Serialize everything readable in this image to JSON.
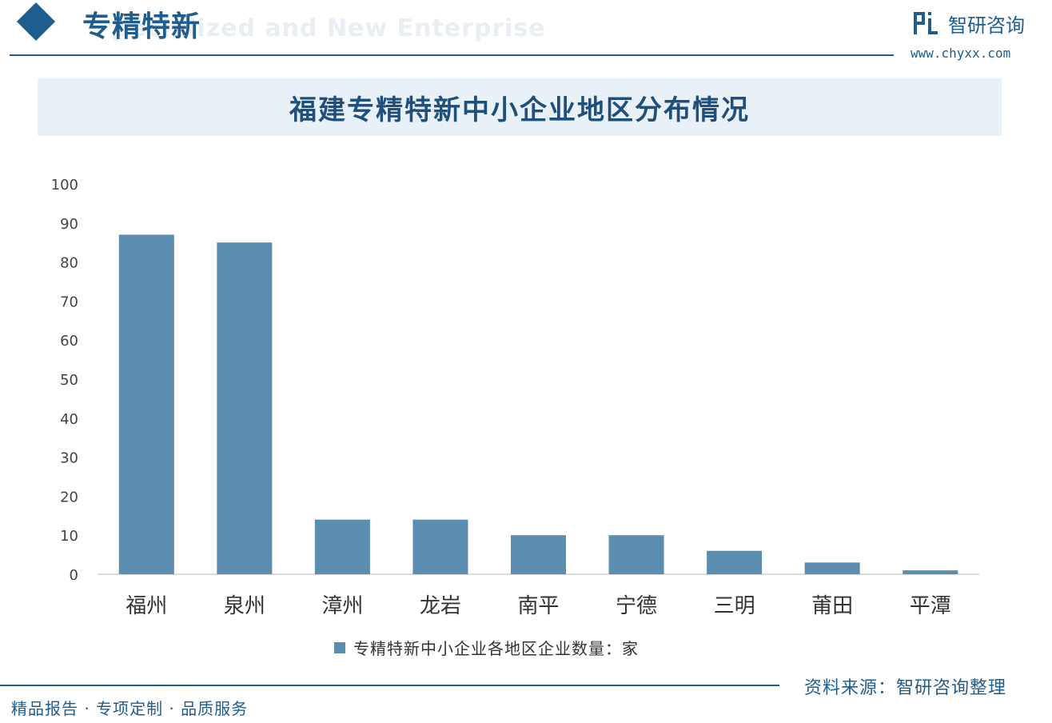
{
  "header": {
    "title": "专精特新",
    "subtitle": "pecialized and New Enterprise",
    "brand_name": "智研咨询",
    "brand_url": "www.chyxx.com"
  },
  "colors": {
    "accent": "#1f5d8f",
    "bar": "#5b8db0",
    "title_band": "#e8f0f8"
  },
  "chart_data": {
    "type": "bar",
    "title": "福建专精特新中小企业地区分布情况",
    "categories": [
      "福州",
      "泉州",
      "漳州",
      "龙岩",
      "南平",
      "宁德",
      "三明",
      "莆田",
      "平潭"
    ],
    "series": [
      {
        "name": "专精特新中小企业各地区企业数量：家",
        "values": [
          87,
          85,
          14,
          14,
          10,
          10,
          6,
          3,
          1
        ]
      }
    ],
    "ylim": [
      0,
      100
    ],
    "yticks": [
      0,
      10,
      20,
      30,
      40,
      50,
      60,
      70,
      80,
      90,
      100
    ],
    "grid": false,
    "legend_position": "bottom"
  },
  "footer": {
    "left_text": "精品报告 · 专项定制 · 品质服务",
    "source": "资料来源：智研咨询整理"
  }
}
